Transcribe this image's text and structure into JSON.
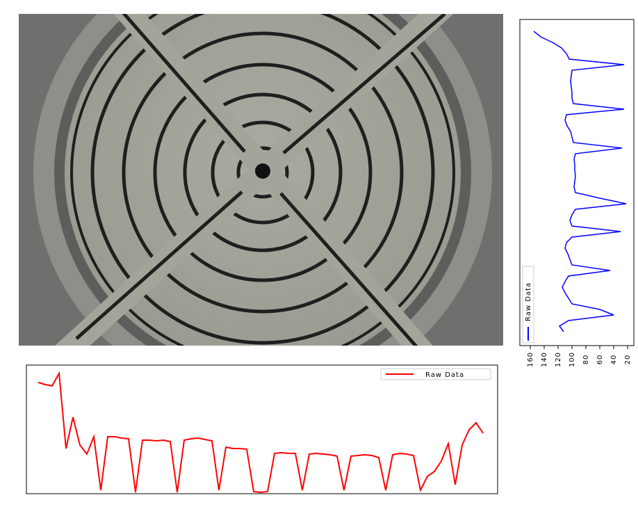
{
  "chart_data": [
    {
      "type": "line",
      "orientation": "rotated",
      "ylim": [
        175,
        11
      ],
      "yticks": [
        160,
        140,
        120,
        100,
        80,
        60,
        40,
        20
      ],
      "series": [
        {
          "name": "Raw Data",
          "color": "#0000ff",
          "values": [
            155,
            145,
            128,
            115,
            108,
            104,
            25,
            100,
            101,
            102,
            101,
            100,
            100,
            98,
            25,
            108,
            110,
            107,
            102,
            100,
            98,
            28,
            95,
            97,
            96,
            96,
            95,
            96,
            97,
            95,
            60,
            22,
            95,
            100,
            103,
            100,
            30,
            100,
            108,
            110,
            106,
            103,
            100,
            45,
            105,
            110,
            114,
            110,
            105,
            100,
            60,
            40,
            105,
            118,
            112
          ]
        }
      ]
    },
    {
      "type": "line",
      "ylim": [
        18,
        203
      ],
      "series": [
        {
          "name": "Raw Data",
          "color": "#ff0000",
          "values": [
            178,
            175,
            173,
            191,
            83,
            128,
            88,
            75,
            100,
            23,
            100,
            100,
            98,
            97,
            20,
            95,
            95,
            94,
            95,
            93,
            20,
            95,
            97,
            98,
            96,
            94,
            23,
            85,
            83,
            83,
            82,
            21,
            20,
            21,
            76,
            77,
            76,
            76,
            23,
            75,
            76,
            75,
            74,
            72,
            23,
            72,
            73,
            74,
            73,
            70,
            23,
            74,
            76,
            75,
            73,
            23,
            43,
            50,
            65,
            90,
            31,
            88,
            110,
            120,
            105
          ]
        }
      ]
    }
  ]
}
